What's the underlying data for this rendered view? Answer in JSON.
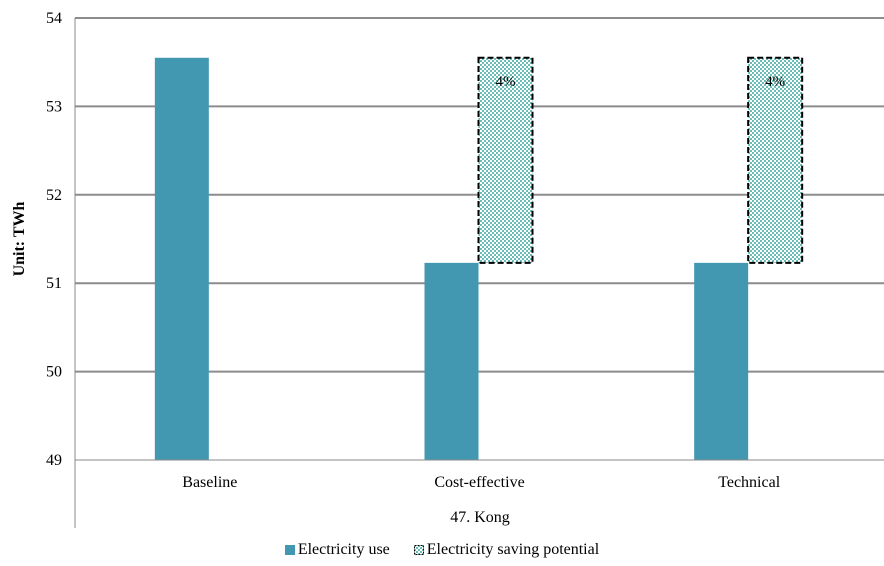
{
  "chart_data": {
    "type": "bar",
    "ylabel": "Unit: TWh",
    "group_label": "47. Kong",
    "categories": [
      "Baseline",
      "Cost-effective",
      "Technical"
    ],
    "ylim": [
      49,
      54
    ],
    "yticks": [
      "49",
      "50",
      "51",
      "52",
      "53",
      "54"
    ],
    "series": [
      {
        "name": "Electricity use",
        "values": [
          53.55,
          51.23,
          51.23
        ],
        "color": "#4298b1",
        "style": "solid"
      },
      {
        "name": "Electricity saving potential",
        "base": [
          null,
          51.23,
          51.23
        ],
        "top": [
          null,
          53.55,
          53.55
        ],
        "labels": [
          null,
          "4%",
          "4%"
        ],
        "color": "#4bb3a8",
        "style": "dotted-pattern-dashed-border"
      }
    ],
    "grid": true,
    "legend_position": "bottom"
  }
}
